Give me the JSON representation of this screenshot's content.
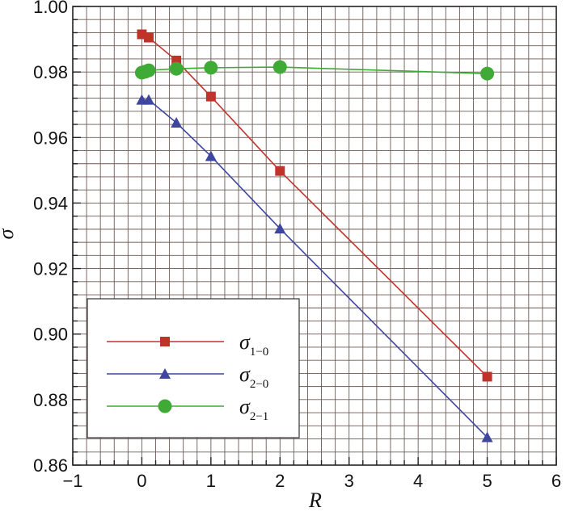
{
  "chart_data": {
    "type": "line",
    "xlabel": "R",
    "ylabel": "σ",
    "xlim": [
      -1,
      6
    ],
    "ylim": [
      0.86,
      1.0
    ],
    "x_ticks": [
      -1,
      0,
      1,
      2,
      3,
      4,
      5,
      6
    ],
    "x_tick_labels": [
      "−1",
      "0",
      "1",
      "2",
      "3",
      "4",
      "5",
      "6"
    ],
    "y_ticks": [
      0.86,
      0.88,
      0.9,
      0.92,
      0.94,
      0.96,
      0.98,
      1.0
    ],
    "y_tick_labels": [
      "0.86",
      "0.88",
      "0.90",
      "0.92",
      "0.94",
      "0.96",
      "0.98",
      "1.00"
    ],
    "grid": true,
    "legend_position": "bottom-left",
    "series": [
      {
        "name": "σ1−0",
        "symbol": "σ",
        "subscript": "1−0",
        "marker": "square",
        "color": "#c0332b",
        "x": [
          0,
          0.1,
          0.5,
          1,
          2,
          5
        ],
        "y": [
          0.9915,
          0.9905,
          0.9835,
          0.9725,
          0.9498,
          0.887
        ]
      },
      {
        "name": "σ2−0",
        "symbol": "σ",
        "subscript": "2−0",
        "marker": "triangle",
        "color": "#3f46a0",
        "x": [
          0,
          0.1,
          0.5,
          1,
          2,
          5
        ],
        "y": [
          0.9715,
          0.9715,
          0.9645,
          0.9543,
          0.9322,
          0.8685
        ]
      },
      {
        "name": "σ2−1",
        "symbol": "σ",
        "subscript": "2−1",
        "marker": "circle",
        "color": "#3faa35",
        "x": [
          0,
          0.05,
          0.1,
          0.5,
          1,
          2,
          5
        ],
        "y": [
          0.9798,
          0.9801,
          0.9805,
          0.981,
          0.9813,
          0.9815,
          0.9795
        ]
      }
    ]
  }
}
